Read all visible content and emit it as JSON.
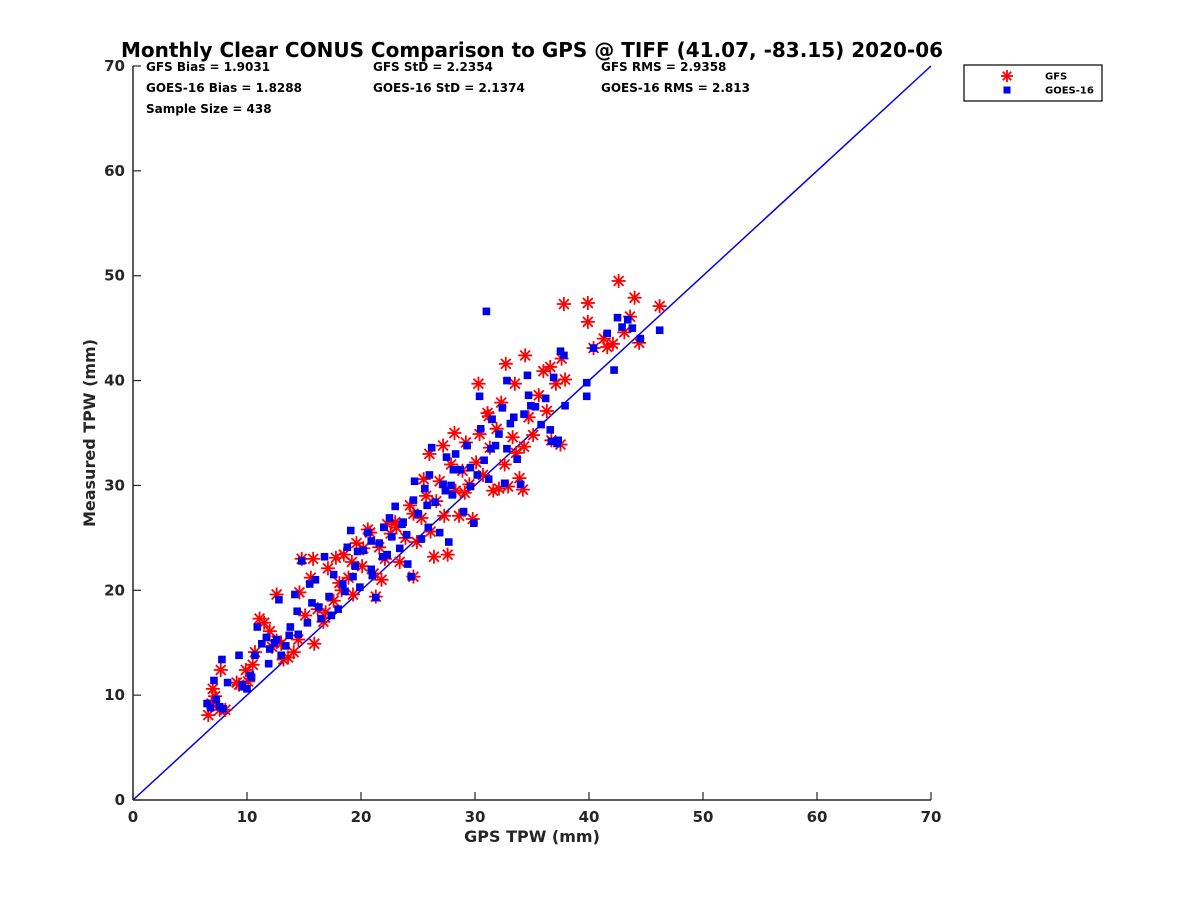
{
  "chart_data": {
    "type": "scatter",
    "title": "Monthly Clear CONUS Comparison to GPS @ TIFF (41.07, -83.15) 2020-06",
    "xlabel": "GPS TPW (mm)",
    "ylabel": "Measured TPW (mm)",
    "xlim": [
      0,
      70
    ],
    "ylim": [
      0,
      70
    ],
    "xticks": [
      "0",
      "10",
      "20",
      "30",
      "40",
      "50",
      "60",
      "70"
    ],
    "yticks": [
      "0",
      "10",
      "20",
      "30",
      "40",
      "50",
      "60",
      "70"
    ],
    "grid": false,
    "legend_position": "outside-top-right",
    "stats": {
      "gfs_bias": "GFS Bias = 1.9031",
      "gfs_std": "GFS StD = 2.2354",
      "gfs_rms": "GFS RMS = 2.9358",
      "goes_bias": "GOES-16 Bias = 1.8288",
      "goes_std": "GOES-16 StD = 2.1374",
      "goes_rms": "GOES-16 RMS = 2.813",
      "sample_size": "Sample Size = 438"
    },
    "reference_line": {
      "x": [
        0,
        70
      ],
      "y": [
        0,
        70
      ],
      "color": "#0000ee"
    },
    "series": [
      {
        "name": "GFS",
        "marker": "asterisk",
        "color": "#ff0000",
        "points": [
          [
            6.6,
            8.1
          ],
          [
            6.9,
            9.2
          ],
          [
            7.2,
            9.9
          ],
          [
            7.6,
            8.6
          ],
          [
            8.1,
            8.6
          ],
          [
            7.7,
            12.4
          ],
          [
            7.0,
            10.6
          ],
          [
            9.3,
            11.0
          ],
          [
            9.9,
            12.4
          ],
          [
            10.5,
            12.9
          ],
          [
            10.7,
            14.1
          ],
          [
            11.1,
            17.3
          ],
          [
            11.5,
            16.9
          ],
          [
            12.0,
            16.1
          ],
          [
            12.6,
            15.2
          ],
          [
            13.0,
            14.9
          ],
          [
            13.6,
            13.6
          ],
          [
            14.1,
            14.1
          ],
          [
            14.5,
            15.3
          ],
          [
            12.6,
            19.6
          ],
          [
            14.6,
            19.8
          ],
          [
            14.8,
            23.0
          ],
          [
            15.8,
            23.0
          ],
          [
            15.1,
            17.6
          ],
          [
            15.9,
            14.9
          ],
          [
            16.2,
            18.2
          ],
          [
            16.9,
            17.9
          ],
          [
            17.1,
            22.1
          ],
          [
            17.6,
            19.0
          ],
          [
            18.1,
            20.7
          ],
          [
            18.5,
            23.4
          ],
          [
            18.9,
            21.2
          ],
          [
            19.3,
            19.6
          ],
          [
            19.6,
            24.5
          ],
          [
            20.1,
            22.3
          ],
          [
            20.6,
            25.8
          ],
          [
            21.1,
            21.6
          ],
          [
            21.3,
            19.4
          ],
          [
            21.6,
            24.1
          ],
          [
            22.1,
            23.0
          ],
          [
            22.6,
            25.4
          ],
          [
            23.1,
            26.0
          ],
          [
            23.4,
            22.7
          ],
          [
            23.9,
            25.0
          ],
          [
            24.3,
            28.1
          ],
          [
            24.6,
            21.3
          ],
          [
            24.9,
            24.6
          ],
          [
            25.3,
            26.9
          ],
          [
            25.7,
            29.0
          ],
          [
            26.1,
            25.6
          ],
          [
            26.4,
            23.2
          ],
          [
            26.6,
            28.5
          ],
          [
            26.9,
            30.4
          ],
          [
            27.3,
            27.1
          ],
          [
            27.6,
            23.4
          ],
          [
            27.9,
            32.0
          ],
          [
            28.3,
            29.5
          ],
          [
            28.6,
            27.1
          ],
          [
            28.9,
            31.4
          ],
          [
            29.2,
            34.1
          ],
          [
            29.5,
            30.1
          ],
          [
            29.8,
            26.8
          ],
          [
            30.1,
            32.2
          ],
          [
            30.4,
            34.9
          ],
          [
            30.7,
            31.0
          ],
          [
            31.1,
            36.9
          ],
          [
            31.3,
            33.6
          ],
          [
            31.6,
            29.5
          ],
          [
            31.9,
            35.4
          ],
          [
            32.3,
            37.9
          ],
          [
            32.6,
            32.0
          ],
          [
            32.7,
            41.6
          ],
          [
            32.9,
            29.9
          ],
          [
            33.3,
            34.6
          ],
          [
            33.5,
            39.7
          ],
          [
            33.9,
            30.7
          ],
          [
            34.3,
            33.7
          ],
          [
            34.4,
            42.4
          ],
          [
            34.2,
            29.6
          ],
          [
            34.7,
            36.5
          ],
          [
            35.1,
            34.8
          ],
          [
            35.6,
            38.6
          ],
          [
            36.0,
            40.9
          ],
          [
            36.3,
            37.1
          ],
          [
            36.6,
            41.3
          ],
          [
            37.1,
            39.7
          ],
          [
            37.5,
            33.9
          ],
          [
            37.6,
            42.1
          ],
          [
            37.8,
            47.3
          ],
          [
            37.9,
            40.1
          ],
          [
            39.9,
            47.4
          ],
          [
            39.9,
            45.6
          ],
          [
            40.4,
            43.1
          ],
          [
            41.3,
            44.0
          ],
          [
            41.6,
            43.2
          ],
          [
            42.1,
            43.5
          ],
          [
            42.6,
            49.5
          ],
          [
            43.1,
            44.6
          ],
          [
            43.6,
            46.1
          ],
          [
            44.0,
            47.9
          ],
          [
            44.4,
            43.6
          ],
          [
            46.2,
            47.1
          ],
          [
            30.3,
            39.7
          ],
          [
            24.6,
            27.3
          ],
          [
            22.3,
            26.3
          ],
          [
            20.8,
            25.5
          ],
          [
            19.2,
            22.7
          ],
          [
            18.3,
            20.0
          ],
          [
            16.7,
            17.0
          ],
          [
            15.6,
            21.2
          ],
          [
            13.2,
            13.4
          ],
          [
            12.2,
            14.6
          ],
          [
            10.1,
            11.3
          ],
          [
            9.1,
            11.2
          ],
          [
            26.0,
            33.0
          ],
          [
            27.2,
            33.8
          ],
          [
            28.2,
            35.0
          ],
          [
            29.1,
            29.3
          ],
          [
            31.2,
            36.6
          ],
          [
            32.1,
            29.7
          ],
          [
            33.6,
            33.1
          ],
          [
            36.7,
            34.3
          ],
          [
            23.0,
            26.5
          ],
          [
            21.8,
            21.0
          ],
          [
            20.2,
            24.0
          ],
          [
            17.8,
            23.1
          ],
          [
            25.5,
            30.6
          ]
        ]
      },
      {
        "name": "GOES-16",
        "marker": "square",
        "color": "#0000ee",
        "points": [
          [
            6.5,
            9.2
          ],
          [
            6.8,
            8.8
          ],
          [
            7.1,
            11.4
          ],
          [
            7.3,
            9.6
          ],
          [
            7.6,
            8.9
          ],
          [
            7.9,
            8.7
          ],
          [
            7.8,
            13.4
          ],
          [
            9.3,
            13.8
          ],
          [
            9.6,
            11.0
          ],
          [
            10.0,
            10.6
          ],
          [
            10.4,
            11.7
          ],
          [
            10.7,
            13.8
          ],
          [
            10.9,
            16.5
          ],
          [
            11.3,
            14.9
          ],
          [
            11.7,
            15.5
          ],
          [
            12.0,
            14.4
          ],
          [
            12.4,
            15.0
          ],
          [
            12.8,
            19.1
          ],
          [
            13.0,
            13.8
          ],
          [
            13.4,
            14.7
          ],
          [
            13.8,
            16.5
          ],
          [
            14.2,
            19.6
          ],
          [
            14.5,
            15.8
          ],
          [
            14.8,
            22.8
          ],
          [
            15.3,
            16.9
          ],
          [
            15.7,
            18.8
          ],
          [
            16.0,
            21.0
          ],
          [
            16.5,
            17.3
          ],
          [
            16.8,
            23.2
          ],
          [
            17.2,
            19.4
          ],
          [
            17.6,
            21.5
          ],
          [
            18.0,
            18.2
          ],
          [
            18.4,
            20.6
          ],
          [
            18.8,
            24.1
          ],
          [
            19.1,
            25.7
          ],
          [
            19.5,
            22.3
          ],
          [
            19.9,
            20.3
          ],
          [
            20.2,
            23.8
          ],
          [
            20.6,
            25.5
          ],
          [
            20.9,
            22.0
          ],
          [
            21.3,
            19.3
          ],
          [
            21.6,
            24.5
          ],
          [
            22.0,
            26.0
          ],
          [
            22.3,
            23.4
          ],
          [
            22.7,
            25.1
          ],
          [
            23.0,
            28.0
          ],
          [
            23.4,
            24.0
          ],
          [
            23.7,
            26.5
          ],
          [
            24.1,
            22.5
          ],
          [
            24.4,
            21.3
          ],
          [
            24.7,
            30.4
          ],
          [
            25.0,
            27.3
          ],
          [
            25.3,
            24.9
          ],
          [
            25.6,
            29.7
          ],
          [
            25.9,
            26.0
          ],
          [
            26.2,
            33.6
          ],
          [
            26.5,
            28.4
          ],
          [
            26.9,
            25.5
          ],
          [
            27.2,
            30.1
          ],
          [
            27.5,
            32.7
          ],
          [
            27.7,
            24.6
          ],
          [
            28.0,
            29.1
          ],
          [
            28.3,
            33.0
          ],
          [
            28.7,
            31.5
          ],
          [
            29.0,
            27.5
          ],
          [
            29.3,
            33.8
          ],
          [
            29.6,
            29.9
          ],
          [
            29.9,
            26.4
          ],
          [
            30.2,
            31.0
          ],
          [
            30.5,
            35.4
          ],
          [
            30.8,
            32.4
          ],
          [
            31.0,
            46.6
          ],
          [
            31.2,
            30.6
          ],
          [
            31.5,
            36.3
          ],
          [
            31.8,
            33.8
          ],
          [
            32.1,
            34.9
          ],
          [
            32.4,
            37.4
          ],
          [
            32.6,
            30.2
          ],
          [
            32.8,
            40.0
          ],
          [
            33.1,
            35.9
          ],
          [
            33.4,
            36.5
          ],
          [
            33.7,
            32.5
          ],
          [
            34.0,
            30.1
          ],
          [
            34.3,
            36.8
          ],
          [
            34.6,
            40.5
          ],
          [
            34.9,
            37.6
          ],
          [
            35.3,
            37.5
          ],
          [
            35.8,
            35.8
          ],
          [
            36.2,
            38.3
          ],
          [
            36.6,
            35.3
          ],
          [
            36.9,
            40.3
          ],
          [
            37.2,
            34.0
          ],
          [
            37.5,
            42.8
          ],
          [
            37.8,
            42.4
          ],
          [
            37.9,
            37.6
          ],
          [
            39.8,
            39.8
          ],
          [
            39.8,
            38.5
          ],
          [
            40.4,
            43.1
          ],
          [
            41.6,
            44.5
          ],
          [
            42.2,
            41.0
          ],
          [
            42.5,
            46.0
          ],
          [
            42.9,
            45.1
          ],
          [
            43.4,
            45.8
          ],
          [
            43.8,
            45.0
          ],
          [
            44.5,
            44.0
          ],
          [
            46.2,
            44.8
          ],
          [
            30.4,
            38.5
          ],
          [
            28.1,
            31.5
          ],
          [
            27.4,
            29.5
          ],
          [
            26.0,
            31.0
          ],
          [
            24.6,
            28.6
          ],
          [
            23.6,
            26.3
          ],
          [
            21.9,
            23.2
          ],
          [
            20.9,
            24.7
          ],
          [
            19.3,
            21.3
          ],
          [
            18.6,
            19.9
          ],
          [
            17.4,
            17.6
          ],
          [
            16.3,
            18.4
          ],
          [
            15.5,
            20.6
          ],
          [
            14.4,
            18.0
          ],
          [
            13.7,
            15.7
          ],
          [
            12.6,
            15.3
          ],
          [
            11.9,
            13.0
          ],
          [
            10.3,
            11.9
          ],
          [
            9.6,
            10.8
          ],
          [
            8.3,
            11.2
          ],
          [
            25.8,
            28.1
          ],
          [
            27.9,
            30.0
          ],
          [
            29.6,
            31.7
          ],
          [
            31.4,
            33.5
          ],
          [
            32.8,
            33.5
          ],
          [
            34.7,
            38.6
          ],
          [
            36.7,
            34.2
          ],
          [
            37.3,
            34.3
          ],
          [
            22.5,
            26.9
          ],
          [
            24.0,
            25.3
          ],
          [
            21.0,
            21.4
          ],
          [
            19.7,
            23.7
          ]
        ]
      }
    ]
  }
}
